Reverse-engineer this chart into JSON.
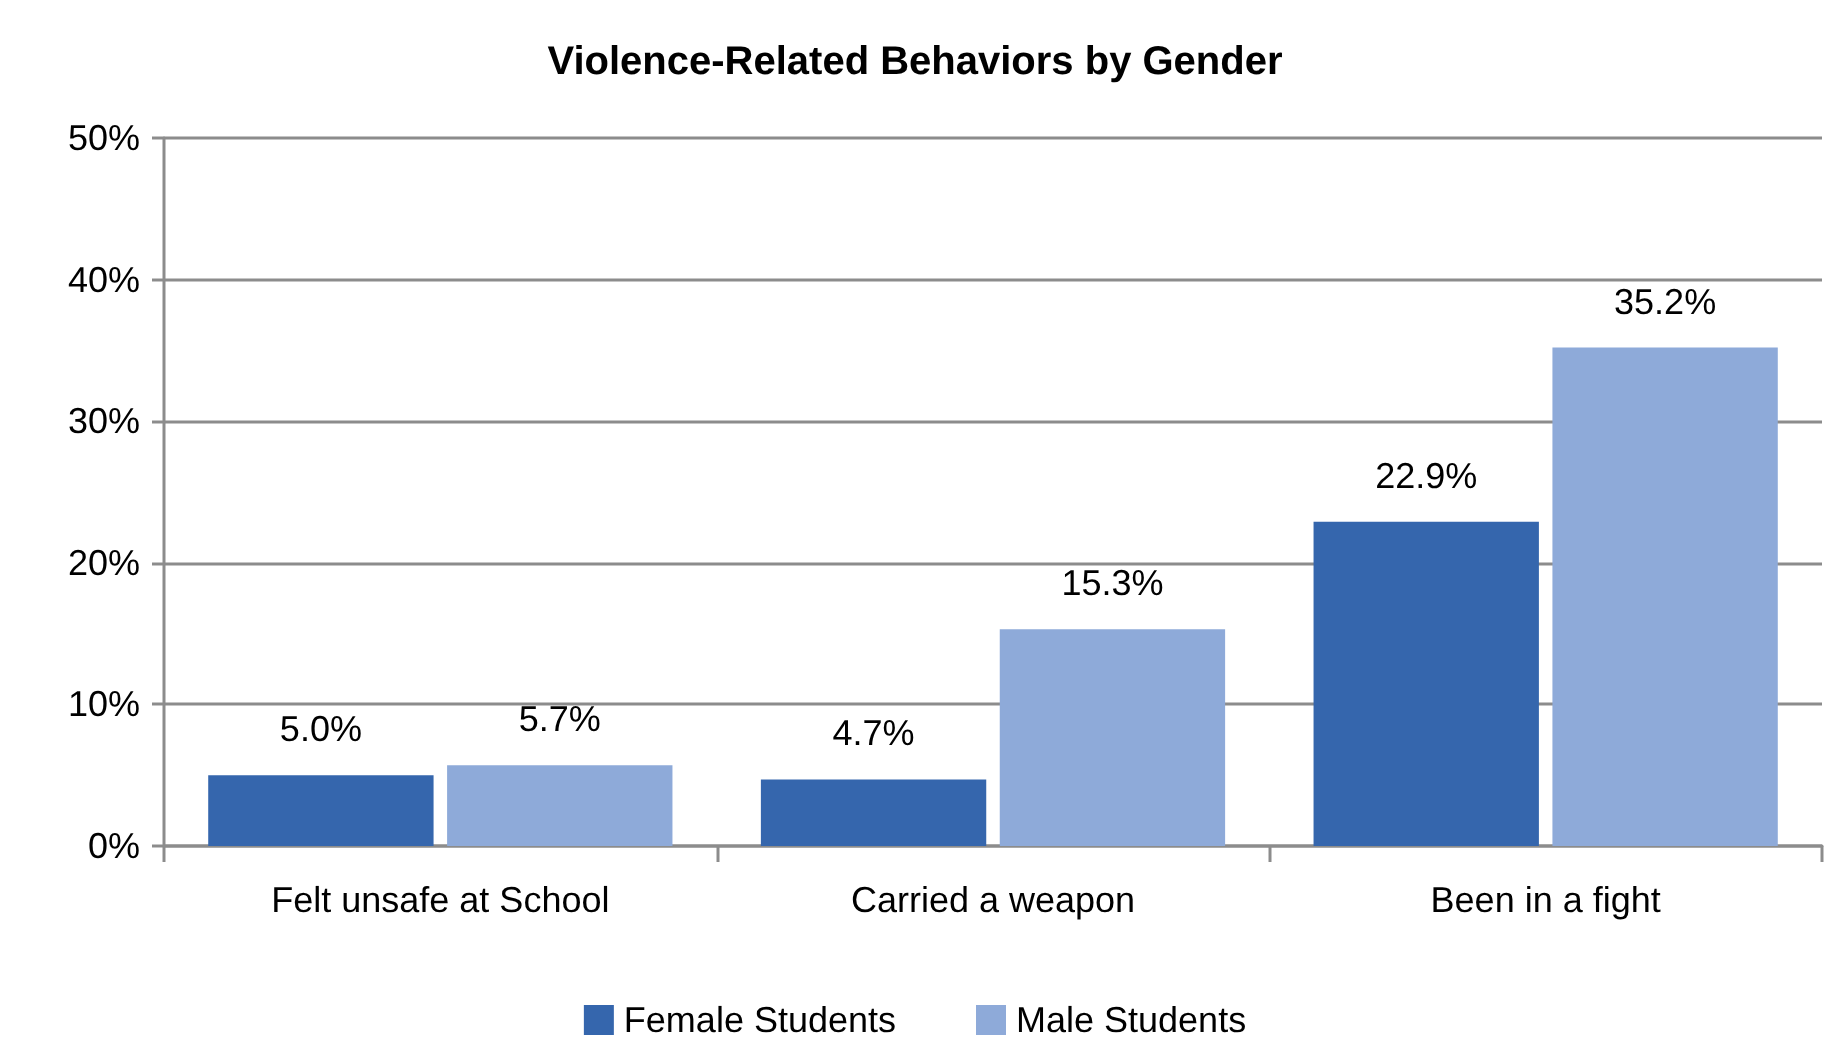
{
  "chart_data": {
    "type": "bar",
    "title": "Violence-Related Behaviors by Gender",
    "categories": [
      "Felt unsafe at School",
      "Carried a weapon",
      "Been in a fight"
    ],
    "series": [
      {
        "name": "Female Students",
        "color": "#3566ad",
        "values": [
          5.0,
          4.7,
          22.9
        ],
        "value_labels": [
          "5.0%",
          "4.7%",
          "22.9%"
        ]
      },
      {
        "name": "Male Students",
        "color": "#8eaad9",
        "values": [
          5.7,
          15.3,
          35.2
        ],
        "value_labels": [
          "5.7%",
          "15.3%",
          "35.2%"
        ]
      }
    ],
    "ylim": [
      0,
      50
    ],
    "yticks": [
      {
        "value": 0,
        "label": "0%"
      },
      {
        "value": 10,
        "label": "10%"
      },
      {
        "value": 20,
        "label": "20%"
      },
      {
        "value": 30,
        "label": "30%"
      },
      {
        "value": 40,
        "label": "40%"
      },
      {
        "value": 50,
        "label": "50%"
      }
    ],
    "grid": "y",
    "legend": "bottom"
  }
}
